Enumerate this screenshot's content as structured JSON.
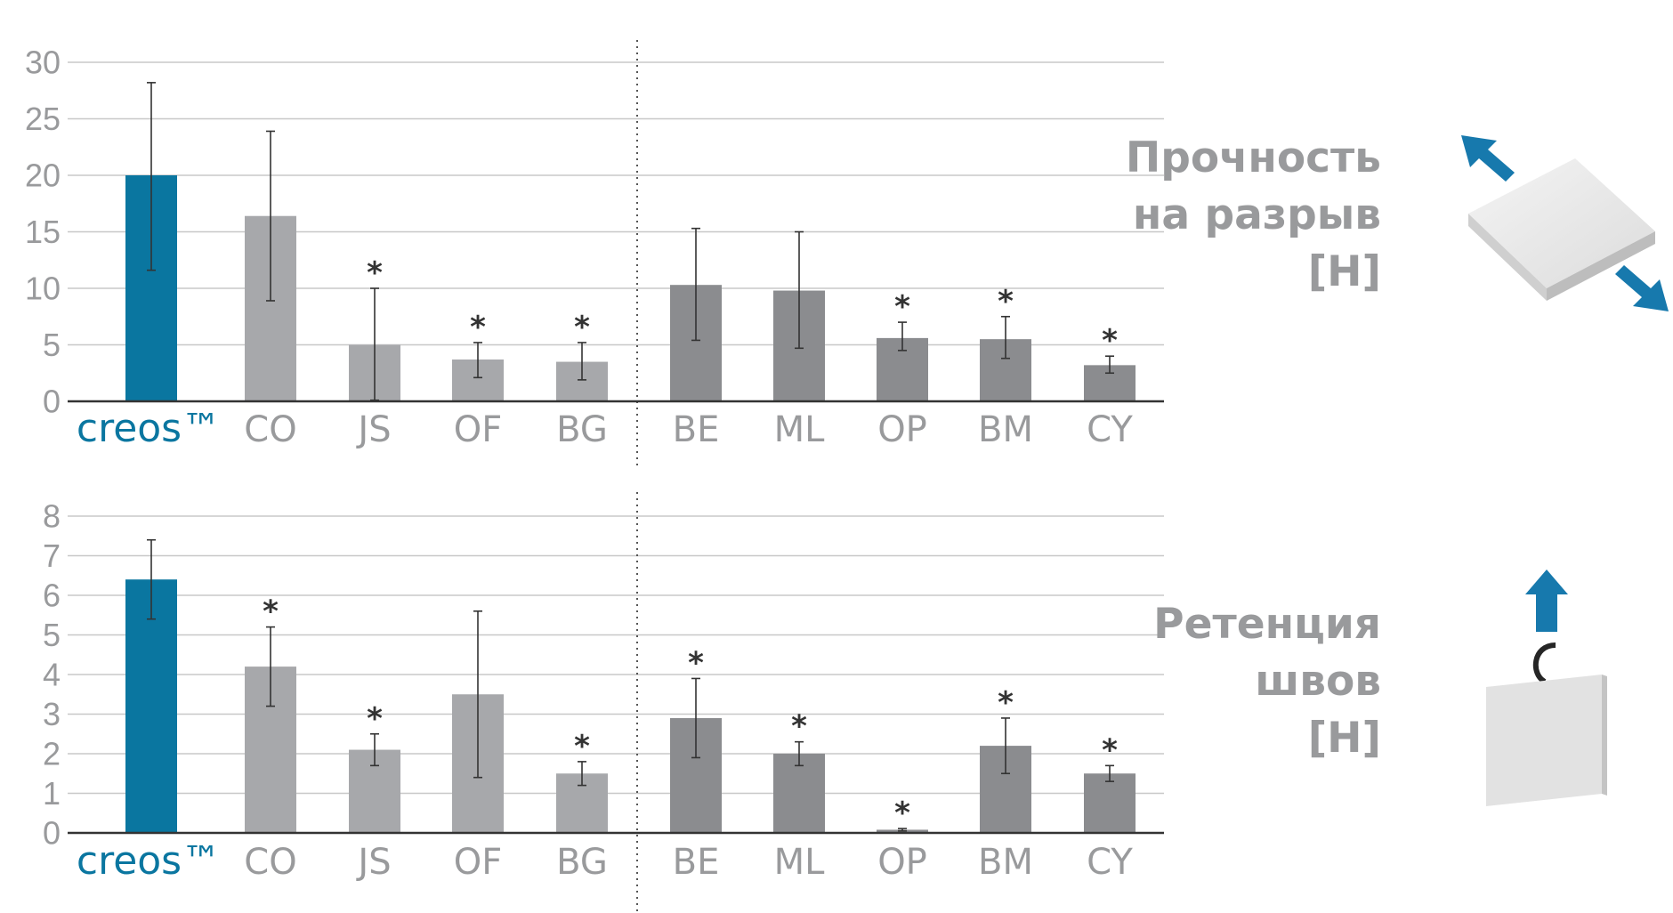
{
  "colors": {
    "creos": "#0a76a0",
    "group1": "#a7a8ab",
    "group2": "#8b8c8f",
    "grid": "#c8c8c8",
    "text": "#999a9c",
    "arrow": "#1779ad"
  },
  "panels": [
    {
      "label_lines": [
        "Прочность",
        "на разрыв",
        "[Н]"
      ],
      "sample_icon": "tensile-sample-icon"
    },
    {
      "label_lines": [
        "Ретенция",
        "швов",
        "[Н]"
      ],
      "sample_icon": "suture-retention-sample-icon"
    }
  ],
  "chart_data": [
    {
      "type": "bar",
      "categories": [
        "creos™",
        "CO",
        "JS",
        "OF",
        "BG",
        "BE",
        "ML",
        "OP",
        "BM",
        "CY"
      ],
      "groups": [
        "creos",
        "group1",
        "group1",
        "group1",
        "group1",
        "group2",
        "group2",
        "group2",
        "group2",
        "group2"
      ],
      "values": [
        20,
        16.4,
        5.0,
        3.7,
        3.5,
        10.3,
        9.8,
        5.6,
        5.5,
        3.2
      ],
      "err_low": [
        11.6,
        8.9,
        0.1,
        2.1,
        1.9,
        5.4,
        4.7,
        4.5,
        3.8,
        2.5
      ],
      "err_high": [
        28.2,
        23.9,
        10.0,
        5.2,
        5.2,
        15.3,
        15.0,
        7.0,
        7.5,
        4.0
      ],
      "significant": [
        false,
        false,
        true,
        true,
        true,
        false,
        false,
        true,
        true,
        true
      ],
      "significance_mark": "*",
      "ylim": [
        0,
        30
      ],
      "yticks": [
        0,
        5,
        10,
        15,
        20,
        25,
        30
      ],
      "grid": true,
      "divider_after": 4
    },
    {
      "type": "bar",
      "categories": [
        "creos™",
        "CO",
        "JS",
        "OF",
        "BG",
        "BE",
        "ML",
        "OP",
        "BM",
        "CY"
      ],
      "groups": [
        "creos",
        "group1",
        "group1",
        "group1",
        "group1",
        "group2",
        "group2",
        "group2",
        "group2",
        "group2"
      ],
      "values": [
        6.4,
        4.2,
        2.1,
        3.5,
        1.5,
        2.9,
        2.0,
        0.08,
        2.2,
        1.5
      ],
      "err_low": [
        5.4,
        3.2,
        1.7,
        1.4,
        1.2,
        1.9,
        1.7,
        0.05,
        1.5,
        1.3
      ],
      "err_high": [
        7.4,
        5.2,
        2.5,
        5.6,
        1.8,
        3.9,
        2.3,
        0.11,
        2.9,
        1.7
      ],
      "significant": [
        false,
        true,
        true,
        false,
        true,
        true,
        true,
        true,
        true,
        true
      ],
      "significance_mark": "*",
      "ylim": [
        0,
        8
      ],
      "yticks": [
        0,
        1,
        2,
        3,
        4,
        5,
        6,
        7,
        8
      ],
      "grid": true,
      "divider_after": 4
    }
  ]
}
